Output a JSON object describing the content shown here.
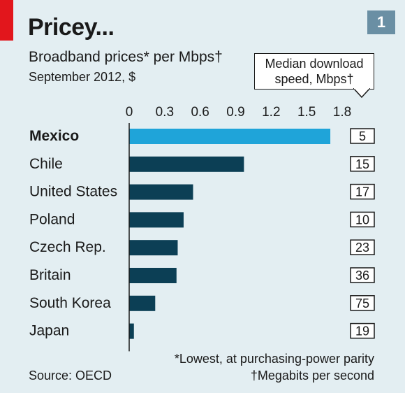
{
  "header": {
    "title": "Pricey...",
    "badge": "1",
    "subtitle": "Broadband prices* per Mbps†",
    "date": "September 2012, $"
  },
  "callout": {
    "line1": "Median download",
    "line2": "speed, Mbps†"
  },
  "chart_data": {
    "type": "bar",
    "orientation": "horizontal",
    "categories": [
      "Mexico",
      "Chile",
      "United States",
      "Poland",
      "Czech Rep.",
      "Britain",
      "South Korea",
      "Japan"
    ],
    "highlight": "Mexico",
    "series": [
      {
        "values": [
          1.7,
          0.97,
          0.54,
          0.46,
          0.41,
          0.4,
          0.22,
          0.04
        ]
      }
    ],
    "median_download_speed": [
      5,
      15,
      17,
      10,
      23,
      36,
      75,
      19
    ],
    "xlim": [
      0,
      1.8
    ],
    "xticks": [
      "0",
      "0.3",
      "0.6",
      "0.9",
      "1.2",
      "1.5",
      "1.8"
    ],
    "xtick_values": [
      0,
      0.3,
      0.6,
      0.9,
      1.2,
      1.5,
      1.8
    ],
    "colors": {
      "highlight": "#1fa4d9",
      "bar": "#0c3f55",
      "box_border": "#1a1a1a"
    },
    "grid": false
  },
  "footnotes": {
    "note1": "*Lowest, at purchasing-power parity",
    "note2": "†Megabits per second",
    "source": "Source: OECD"
  }
}
